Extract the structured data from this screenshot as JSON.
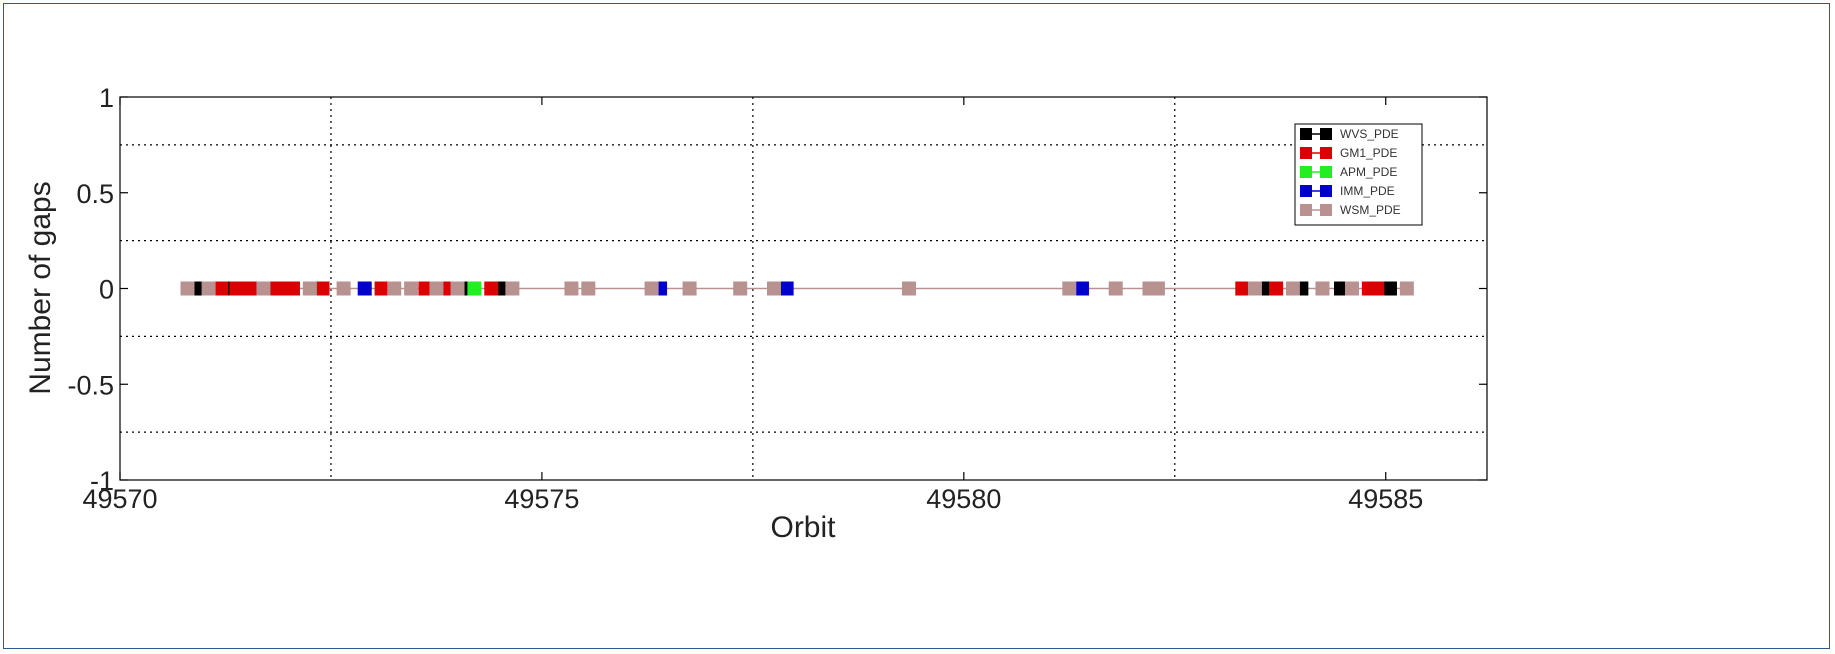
{
  "chart_data": {
    "type": "scatter",
    "title": "",
    "xlabel": "Orbit",
    "ylabel": "Number of gaps",
    "xlim": [
      49570,
      49586.2
    ],
    "ylim": [
      -1,
      1
    ],
    "xticks": [
      49570,
      49575,
      49580,
      49585
    ],
    "xtick_labels": [
      "49570",
      "49575",
      "49580",
      "49585"
    ],
    "yticks": [
      -1,
      -0.5,
      0,
      0.5,
      1
    ],
    "ytick_labels": [
      "-1",
      "-0.5",
      "0",
      "0.5",
      "1"
    ],
    "grid": true,
    "grid_style": "dotted",
    "legend_position": "top-right",
    "series": [
      {
        "name": "WVS_PDE",
        "color": "#000000",
        "x": [
          49570.95,
          49571.3,
          49574.13,
          49574.55,
          49583.57,
          49584.0,
          49584.47,
          49584.95,
          49585.05
        ],
        "y": [
          0,
          0,
          0,
          0,
          0,
          0,
          0,
          0,
          0
        ]
      },
      {
        "name": "GM1_PDE",
        "color": "#dd0000",
        "x": [
          49571.2,
          49571.38,
          49571.5,
          49571.62,
          49571.85,
          49571.95,
          49572.05,
          49572.4,
          49573.1,
          49573.62,
          49573.9,
          49574.4,
          49583.3,
          49583.7,
          49584.8,
          49584.9
        ],
        "y": [
          0,
          0,
          0,
          0,
          0,
          0,
          0,
          0,
          0,
          0,
          0,
          0,
          0,
          0,
          0,
          0
        ]
      },
      {
        "name": "APM_PDE",
        "color": "#22ee22",
        "x": [
          49574.2
        ],
        "y": [
          0
        ]
      },
      {
        "name": "IMM_PDE",
        "color": "#0000cc",
        "x": [
          49572.9,
          49576.4,
          49577.9,
          49581.4
        ],
        "y": [
          0,
          0,
          0,
          0
        ]
      },
      {
        "name": "WSM_PDE",
        "color": "#b89290",
        "x": [
          49570.8,
          49571.05,
          49571.7,
          49572.25,
          49572.65,
          49573.25,
          49573.45,
          49573.75,
          49574.0,
          49574.65,
          49575.35,
          49575.55,
          49576.3,
          49576.75,
          49577.35,
          49577.75,
          49579.35,
          49581.25,
          49581.8,
          49582.2,
          49582.3,
          49583.45,
          49583.9,
          49584.25,
          49584.6,
          49585.25
        ],
        "y": [
          0,
          0,
          0,
          0,
          0,
          0,
          0,
          0,
          0,
          0,
          0,
          0,
          0,
          0,
          0,
          0,
          0,
          0,
          0,
          0,
          0,
          0,
          0,
          0,
          0,
          0
        ]
      }
    ]
  }
}
